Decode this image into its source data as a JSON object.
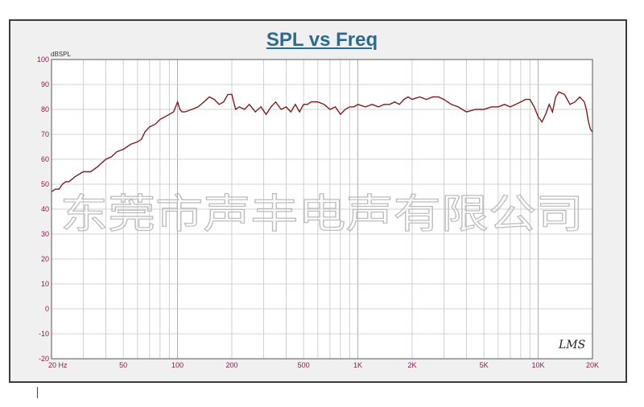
{
  "chart_data": {
    "type": "line",
    "title": "SPL vs Freq",
    "ylabel": "dBSPL",
    "xlabel": "",
    "x_scale": "log",
    "xlim": [
      20,
      20000
    ],
    "ylim": [
      -20,
      100
    ],
    "y_ticks": [
      100,
      90,
      80,
      70,
      60,
      50,
      40,
      30,
      20,
      10,
      0,
      -10,
      -20
    ],
    "x_ticks": [
      {
        "value": 20,
        "label": "20 Hz"
      },
      {
        "value": 50,
        "label": "50"
      },
      {
        "value": 100,
        "label": "100"
      },
      {
        "value": 200,
        "label": "200"
      },
      {
        "value": 500,
        "label": "500"
      },
      {
        "value": 1000,
        "label": "1K"
      },
      {
        "value": 2000,
        "label": "2K"
      },
      {
        "value": 5000,
        "label": "5K"
      },
      {
        "value": 10000,
        "label": "10K"
      },
      {
        "value": 20000,
        "label": "20K"
      }
    ],
    "grid": true,
    "line_color": "#7a1f1f",
    "series": [
      {
        "x": [
          20,
          21,
          22,
          23,
          24,
          25,
          27,
          30,
          33,
          36,
          40,
          43,
          46,
          50,
          55,
          60,
          63,
          66,
          70,
          75,
          80,
          85,
          90,
          95,
          100,
          103,
          106,
          110,
          120,
          130,
          140,
          150,
          160,
          170,
          180,
          190,
          200,
          210,
          220,
          235,
          250,
          270,
          290,
          310,
          330,
          350,
          375,
          400,
          425,
          450,
          475,
          500,
          525,
          550,
          600,
          650,
          700,
          750,
          800,
          850,
          900,
          950,
          1000,
          1100,
          1200,
          1300,
          1400,
          1500,
          1600,
          1700,
          1800,
          1900,
          2000,
          2200,
          2400,
          2600,
          2800,
          3000,
          3300,
          3600,
          4000,
          4500,
          5000,
          5500,
          6000,
          6500,
          7000,
          7500,
          8000,
          8500,
          9000,
          9500,
          10000,
          10500,
          11000,
          11500,
          12000,
          12500,
          13000,
          14000,
          15000,
          16000,
          17000,
          18000,
          18500,
          19000,
          19500,
          20000
        ],
        "y": [
          47,
          48,
          48,
          50,
          51,
          51,
          53,
          55,
          55,
          57,
          60,
          61,
          63,
          64,
          66,
          67,
          68,
          71,
          73,
          74,
          76,
          77,
          78,
          79,
          83,
          80,
          79,
          79,
          80,
          81,
          83,
          85,
          84,
          82,
          83,
          86,
          86,
          80,
          81,
          80,
          82,
          79,
          81,
          78,
          81,
          83,
          80,
          81,
          79,
          82,
          79,
          82,
          82,
          83,
          83,
          82,
          80,
          81,
          78,
          80,
          81,
          81,
          82,
          81,
          82,
          81,
          82,
          82,
          83,
          82,
          84,
          85,
          84,
          85,
          84,
          85,
          85,
          84,
          82,
          81,
          79,
          80,
          80,
          81,
          81,
          82,
          81,
          82,
          83,
          84,
          84,
          81,
          77,
          75,
          78,
          82,
          79,
          85,
          87,
          86,
          82,
          83,
          85,
          83,
          80,
          75,
          72,
          71
        ]
      }
    ]
  },
  "watermark": "东莞市声丰电声有限公司",
  "brand": "LMS"
}
